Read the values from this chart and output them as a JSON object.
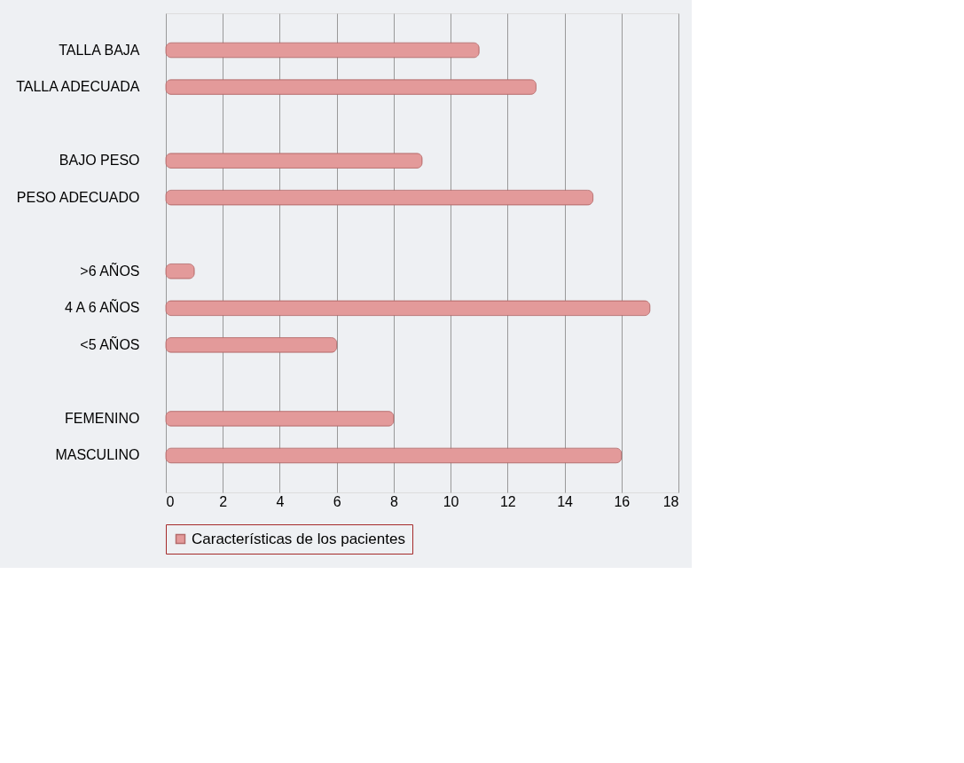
{
  "chart_data": {
    "type": "bar",
    "orientation": "horizontal",
    "categories": [
      "TALLA BAJA",
      "TALLA ADECUADA",
      null,
      "BAJO PESO",
      "PESO ADECUADO",
      null,
      ">6 AÑOS",
      "4 A 6 AÑOS",
      "<5 AÑOS",
      null,
      "FEMENINO",
      "MASCULINO"
    ],
    "series": [
      {
        "name": "Características de los pacientes",
        "color": "#e39a9a",
        "values": [
          11,
          13,
          null,
          9,
          15,
          null,
          1,
          17,
          6,
          null,
          8,
          16
        ]
      }
    ],
    "xlim": [
      0,
      18
    ],
    "xticks": [
      0,
      2,
      4,
      6,
      8,
      10,
      12,
      14,
      16,
      18
    ],
    "grid": "x",
    "legend": "bottom"
  }
}
